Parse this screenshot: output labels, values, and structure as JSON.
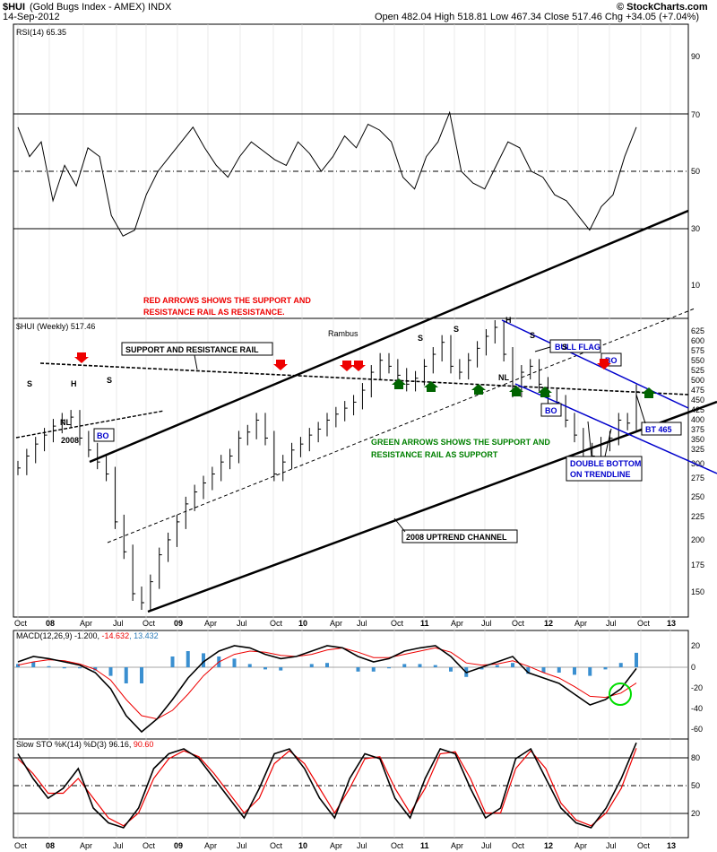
{
  "header": {
    "symbol": "$HUI",
    "name": "(Gold Bugs Index - AMEX) INDX",
    "date": "14-Sep-2012",
    "ohlc": "Open 482.04  High 518.81  Low 467.34  Close 517.46  Chg +34.05 (+7.04%)",
    "brand": "© StockCharts.com"
  },
  "rsi": {
    "label": "RSI(14) 65.35",
    "ticks": [
      "90",
      "70",
      "50",
      "30",
      "10"
    ]
  },
  "price": {
    "label": "$HUI (Weekly) 517.46",
    "author": "Rambus",
    "ticks": [
      "625",
      "600",
      "575",
      "550",
      "525",
      "500",
      "475",
      "450",
      "425",
      "400",
      "375",
      "350",
      "325",
      "300",
      "275",
      "250",
      "225",
      "200",
      "175",
      "150"
    ]
  },
  "macd": {
    "label": "MACD(12,26,9) -1.200, ",
    "sig": "-14.632",
    "hist": ", 13.432",
    "ticks": [
      "20",
      "0",
      "-20",
      "-40",
      "-60"
    ]
  },
  "sto": {
    "label": "Slow STO %K(14) %D(3) 96.16, ",
    "d": "90.60",
    "ticks": [
      "80",
      "50",
      "20"
    ]
  },
  "xaxis": [
    "Oct",
    "08",
    "Apr",
    "Jul",
    "Oct",
    "09",
    "Apr",
    "Jul",
    "Oct",
    "10",
    "Apr",
    "Jul",
    "Oct",
    "11",
    "Apr",
    "Jul",
    "Oct",
    "12",
    "Apr",
    "Jul",
    "Oct",
    "13"
  ],
  "annotations": {
    "red_note_1": "RED ARROWS SHOWS THE SUPPORT AND",
    "red_note_2": "RESISTANCE RAIL AS RESISTANCE.",
    "green_note_1": "GREEN ARROWS SHOWS THE SUPPORT AND",
    "green_note_2": "RESISTANCE RAIL AS SUPPORT",
    "sr_rail": "SUPPORT AND RESISTANCE RAIL",
    "uptrend": "2008 UPTREND CHANNEL",
    "bull_flag": "BULL FLAG",
    "bo": "BO",
    "bt": "BT 465",
    "db1": "DOUBLE BOTTOM",
    "db2": "ON TRENDLINE",
    "s": "S",
    "h": "H",
    "nl": "NL",
    "y2008": "2008"
  },
  "chart_data": {
    "type": "line",
    "title": "$HUI (Gold Bugs Index - AMEX) INDX",
    "x_categories": [
      "Oct",
      "08",
      "Apr",
      "Jul",
      "Oct",
      "09",
      "Apr",
      "Jul",
      "Oct",
      "10",
      "Apr",
      "Jul",
      "Oct",
      "11",
      "Apr",
      "Jul",
      "Oct",
      "12",
      "Apr",
      "Jul",
      "Oct",
      "13"
    ],
    "price_weekly_close": [
      390,
      410,
      430,
      445,
      460,
      470,
      475,
      440,
      420,
      400,
      380,
      300,
      250,
      180,
      165,
      200,
      245,
      270,
      300,
      330,
      350,
      365,
      380,
      400,
      410,
      440,
      450,
      470,
      440,
      380,
      400,
      420,
      430,
      445,
      455,
      470,
      480,
      490,
      500,
      520,
      550,
      570,
      560,
      545,
      530,
      540,
      560,
      580,
      600,
      560,
      550,
      570,
      590,
      610,
      625,
      580,
      520,
      550,
      560,
      530,
      510,
      500,
      470,
      445,
      420,
      410,
      430,
      440,
      470,
      465,
      517.46
    ],
    "price_ylim": [
      150,
      625
    ],
    "rsi": [
      65,
      55,
      60,
      40,
      52,
      45,
      58,
      55,
      35,
      28,
      30,
      42,
      50,
      55,
      60,
      65,
      58,
      52,
      48,
      55,
      60,
      57,
      54,
      52,
      60,
      56,
      50,
      55,
      62,
      58,
      66,
      64,
      60,
      48,
      44,
      55,
      60,
      70,
      50,
      46,
      44,
      52,
      60,
      58,
      50,
      48,
      42,
      40,
      35,
      30,
      38,
      42,
      55,
      65
    ],
    "rsi_ylim": [
      0,
      100
    ],
    "macd": [
      5,
      10,
      8,
      5,
      2,
      -5,
      -20,
      -45,
      -60,
      -48,
      -30,
      -10,
      5,
      15,
      20,
      18,
      12,
      8,
      10,
      15,
      20,
      18,
      10,
      5,
      8,
      15,
      18,
      20,
      10,
      -5,
      0,
      5,
      10,
      -5,
      -10,
      -15,
      -25,
      -35,
      -30,
      -20,
      -1.2
    ],
    "macd_signal": [
      2,
      5,
      7,
      6,
      3,
      -2,
      -12,
      -30,
      -45,
      -48,
      -40,
      -25,
      -8,
      5,
      12,
      15,
      14,
      11,
      10,
      12,
      16,
      18,
      14,
      9,
      9,
      12,
      15,
      18,
      14,
      4,
      2,
      3,
      6,
      1,
      -5,
      -10,
      -18,
      -27,
      -28,
      -24,
      -14.632
    ],
    "macd_hist": [
      3,
      5,
      1,
      -1,
      -1,
      -3,
      -8,
      -15,
      -15,
      0,
      10,
      15,
      13,
      10,
      8,
      3,
      -2,
      -3,
      0,
      3,
      4,
      0,
      -4,
      -4,
      -1,
      3,
      3,
      2,
      -4,
      -9,
      -2,
      2,
      4,
      -6,
      -5,
      -5,
      -7,
      -8,
      -2,
      4,
      13.432
    ],
    "macd_ylim": [
      -60,
      25
    ],
    "slow_sto_k": [
      85,
      60,
      40,
      50,
      70,
      30,
      15,
      10,
      30,
      70,
      85,
      90,
      80,
      60,
      40,
      20,
      50,
      85,
      90,
      70,
      40,
      20,
      60,
      85,
      80,
      40,
      20,
      60,
      90,
      85,
      50,
      20,
      30,
      80,
      90,
      60,
      30,
      15,
      10,
      30,
      60,
      96.16
    ],
    "slow_sto_d": [
      80,
      65,
      45,
      45,
      60,
      40,
      20,
      12,
      25,
      60,
      80,
      88,
      82,
      65,
      45,
      25,
      40,
      75,
      88,
      75,
      50,
      25,
      50,
      80,
      82,
      50,
      25,
      50,
      85,
      87,
      60,
      25,
      25,
      70,
      88,
      70,
      35,
      18,
      12,
      25,
      50,
      90.6
    ],
    "sto_ylim": [
      0,
      100
    ]
  }
}
